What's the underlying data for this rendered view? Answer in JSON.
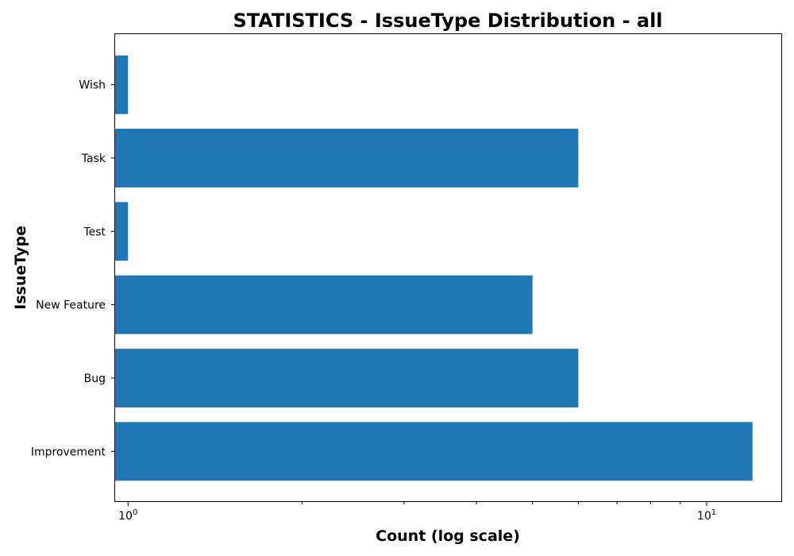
{
  "chart_data": {
    "type": "bar",
    "orientation": "horizontal",
    "title": "STATISTICS - IssueType Distribution - all",
    "xlabel": "Count (log scale)",
    "ylabel": "IssueType",
    "x_scale": "log",
    "xlim": [
      0.95,
      13.5
    ],
    "x_ticks": [
      {
        "value": 1,
        "base": "10",
        "exp": "0"
      },
      {
        "value": 10,
        "base": "10",
        "exp": "1"
      }
    ],
    "categories": [
      "Improvement",
      "Bug",
      "New Feature",
      "Test",
      "Task",
      "Wish"
    ],
    "values": [
      12,
      6,
      5,
      1,
      6,
      1
    ],
    "bar_color": "#1f77b4",
    "grid": false,
    "legend": "none"
  }
}
